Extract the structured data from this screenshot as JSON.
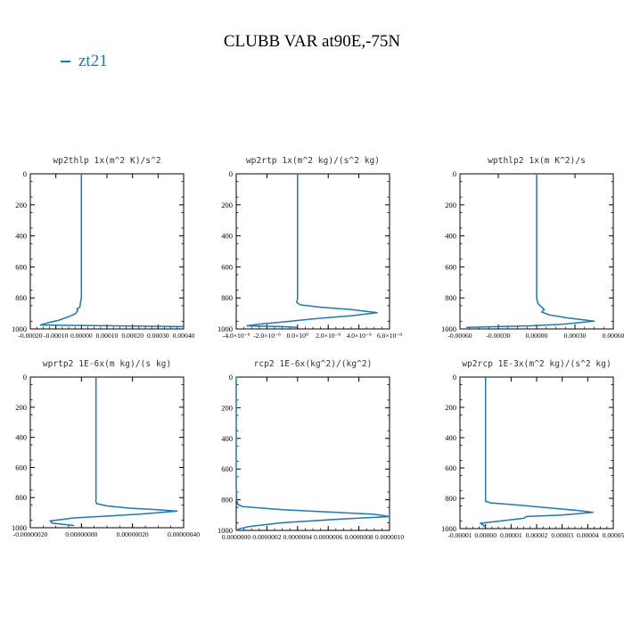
{
  "title": "CLUBB VAR at90E,-75N",
  "legend": {
    "label": "zt21",
    "color": "#1f77b4"
  },
  "chart_data": [
    {
      "type": "line",
      "title": "wp2thlp  1x(m^2 K)/s^2",
      "xlim": [
        -0.0002,
        0.0004
      ],
      "ylim": [
        1000,
        0
      ],
      "xticks": [
        "-0.00020",
        "-0.00010",
        "0.00000",
        "0.00010",
        "0.00020",
        "0.00030",
        "0.00040"
      ],
      "yticks": [
        "0",
        "200",
        "400",
        "600",
        "800",
        "1000"
      ],
      "series": [
        {
          "x": [
            0.0,
            0.0,
            -3e-06,
            -6e-06,
            -1.8e-05,
            -1.4e-05,
            -2.2e-05,
            -4e-05,
            -9e-05,
            -0.00013,
            -0.00016,
            0.0004
          ],
          "y": [
            0,
            800,
            820,
            860,
            870,
            880,
            900,
            915,
            945,
            960,
            975,
            985
          ]
        }
      ]
    },
    {
      "type": "line",
      "title": "wp2rtp  1x(m^2 kg)/(s^2 kg)",
      "xlim": [
        -4e-09,
        6e-09
      ],
      "ylim": [
        1000,
        0
      ],
      "xticks": [
        "-4.0×10⁻⁹",
        "-2.0×10⁻⁹",
        "0.0×10⁰",
        "2.0×10⁻⁹",
        "4.0×10⁻⁹",
        "6.0×10⁻⁹"
      ],
      "yticks": [
        "0",
        "200",
        "400",
        "600",
        "800",
        "1000"
      ],
      "series": [
        {
          "x": [
            0.0,
            0.0,
            -5e-11,
            2e-10,
            1.5e-09,
            3.5e-09,
            5.2e-09,
            3.5e-09,
            1e-09,
            -1e-09,
            -2.6e-09,
            -3.3e-09,
            -1e-09,
            0.0
          ],
          "y": [
            0,
            800,
            830,
            845,
            860,
            875,
            895,
            915,
            935,
            955,
            970,
            980,
            985,
            990
          ]
        }
      ]
    },
    {
      "type": "line",
      "title": "wpthlp2  1x(m K^2)/s",
      "xlim": [
        -0.0006,
        0.0006
      ],
      "ylim": [
        1000,
        0
      ],
      "xticks": [
        "-0.00060",
        "-0.00030",
        "0.00000",
        "0.00030",
        "0.00060"
      ],
      "yticks": [
        "0",
        "200",
        "400",
        "600",
        "800",
        "1000"
      ],
      "series": [
        {
          "x": [
            0.0,
            0.0,
            1e-05,
            4e-05,
            6e-05,
            4e-05,
            0.0001,
            0.00025,
            0.00045,
            0.0002,
            -5e-05,
            -0.00055
          ],
          "y": [
            0,
            800,
            835,
            860,
            875,
            890,
            910,
            930,
            950,
            970,
            980,
            990
          ]
        }
      ]
    },
    {
      "type": "line",
      "title": "wprtp2  1E-6x(m kg)/(s kg)",
      "xlim": [
        -3e-07,
        4e-07
      ],
      "ylim": [
        1000,
        0
      ],
      "xticks": [
        "-0.00000020",
        "0.00000000",
        "0.00000020",
        "0.00000040"
      ],
      "yticks": [
        "0",
        "200",
        "400",
        "600",
        "800",
        "1000"
      ],
      "series": [
        {
          "x": [
            0.0,
            0.0,
            -1e-09,
            3e-09,
            5e-08,
            1.5e-07,
            2.8e-07,
            3.7e-07,
            2e-07,
            -1e-07,
            -2.1e-07,
            -2e-07,
            -1e-07
          ],
          "y": [
            0,
            810,
            825,
            840,
            855,
            870,
            880,
            890,
            910,
            935,
            955,
            970,
            985
          ]
        }
      ]
    },
    {
      "type": "line",
      "title": "rcp2  1E-6x(kg^2)/(kg^2)",
      "xlim": [
        0.0,
        1e-06
      ],
      "ylim": [
        1000,
        0
      ],
      "xticks": [
        "0.0000000",
        "0.0000002",
        "0.0000004",
        "0.0000006",
        "0.0000008",
        "0.0000010"
      ],
      "yticks": [
        "0",
        "200",
        "400",
        "600",
        "800",
        "1000"
      ],
      "series": [
        {
          "x": [
            0.0,
            0.0,
            1e-09,
            3e-09,
            1e-08,
            4e-08,
            3e-07,
            9e-07,
            1e-06,
            7e-07,
            3e-07,
            8e-08,
            2e-08,
            0.0
          ],
          "y": [
            0,
            700,
            750,
            800,
            830,
            845,
            865,
            895,
            910,
            925,
            950,
            975,
            990,
            1000
          ]
        }
      ]
    },
    {
      "type": "line",
      "title": "wp2rcp  1E-3x(m^2 kg)/(s^2 kg)",
      "xlim": [
        -1e-05,
        5e-05
      ],
      "ylim": [
        1000,
        0
      ],
      "xticks": [
        "-0.00001",
        "0.00000",
        "0.00001",
        "0.00002",
        "0.00003",
        "0.00004",
        "0.00005"
      ],
      "yticks": [
        "0",
        "200",
        "400",
        "600",
        "800",
        "1000"
      ],
      "series": [
        {
          "x": [
            0.0,
            0.0,
            2e-06,
            1.3e-05,
            2.4e-05,
            3.6e-05,
            4.2e-05,
            3e-05,
            1.6e-05,
            1.5e-05,
            3e-06,
            -2e-06,
            -1e-06,
            0.0
          ],
          "y": [
            0,
            820,
            830,
            845,
            862,
            880,
            893,
            910,
            920,
            932,
            955,
            965,
            975,
            990
          ]
        }
      ]
    }
  ]
}
